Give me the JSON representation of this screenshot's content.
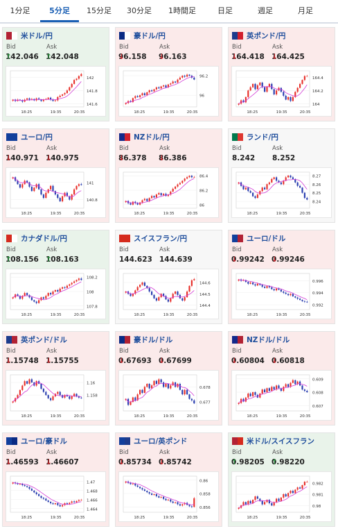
{
  "tabs": [
    {
      "label": "1分足",
      "active": false
    },
    {
      "label": "5分足",
      "active": true
    },
    {
      "label": "15分足",
      "active": false
    },
    {
      "label": "30分足",
      "active": false
    },
    {
      "label": "1時間足",
      "active": false
    },
    {
      "label": "日足",
      "active": false
    },
    {
      "label": "週足",
      "active": false
    },
    {
      "label": "月足",
      "active": false
    }
  ],
  "labels": {
    "bid": "Bid",
    "ask": "Ask"
  },
  "colors": {
    "up_bg": "#e9f3ea",
    "down_bg": "#fbeaea",
    "flat_bg": "#f7f7f7",
    "candle_up": "#e8302b",
    "candle_down": "#2a3eb0",
    "ma_line": "#d23ad6",
    "pair_text": "#1f4e9c"
  },
  "cards": [
    {
      "pair": "米ドル/円",
      "flag": [
        "#b22234",
        "#ffffff"
      ],
      "trend": "up",
      "bid": "142.046",
      "ask": "142.048",
      "dir": "up",
      "chart_data": {
        "type": "candlestick",
        "x_ticks": [
          "18:25",
          "19:35",
          "20:35"
        ],
        "y_ticks": [
          "142",
          "141.8",
          "141.6"
        ],
        "ylim": [
          141.55,
          142.1
        ],
        "closes": [
          141.66,
          141.64,
          141.66,
          141.65,
          141.63,
          141.66,
          141.68,
          141.66,
          141.67,
          141.65,
          141.68,
          141.66,
          141.64,
          141.66,
          141.67,
          141.69,
          141.66,
          141.64,
          141.65,
          141.7,
          141.72,
          141.74,
          141.76,
          141.8,
          141.85,
          141.9,
          141.96,
          141.98,
          142.02,
          142.05
        ]
      }
    },
    {
      "pair": "豪ドル/円",
      "flag": [
        "#0a2a84",
        "#ffffff"
      ],
      "trend": "down",
      "bid": "96.158",
      "ask": "96.163",
      "dir": "down",
      "chart_data": {
        "type": "candlestick",
        "x_ticks": [
          "18:25",
          "19:35",
          "20:35"
        ],
        "y_ticks": [
          "96.2",
          "96"
        ],
        "ylim": [
          95.88,
          96.25
        ],
        "closes": [
          95.92,
          95.94,
          95.93,
          95.97,
          95.99,
          95.98,
          96.0,
          96.02,
          96.0,
          96.03,
          96.05,
          96.04,
          96.06,
          96.08,
          96.07,
          96.09,
          96.1,
          96.08,
          96.11,
          96.12,
          96.14,
          96.13,
          96.16,
          96.18,
          96.2,
          96.19,
          96.21,
          96.2,
          96.18,
          96.16
        ]
      }
    },
    {
      "pair": "英ポンド/円",
      "flag": [
        "#1d3b8c",
        "#d21f2c"
      ],
      "trend": "down",
      "bid": "164.418",
      "ask": "164.425",
      "dir": "down",
      "chart_data": {
        "type": "candlestick",
        "x_ticks": [
          "18:25",
          "19:35",
          "20:35"
        ],
        "y_ticks": [
          "164.4",
          "164.2",
          "164"
        ],
        "ylim": [
          163.95,
          164.5
        ],
        "closes": [
          164.0,
          164.05,
          164.02,
          164.1,
          164.2,
          164.25,
          164.3,
          164.22,
          164.28,
          164.32,
          164.25,
          164.18,
          164.26,
          164.3,
          164.22,
          164.14,
          164.2,
          164.24,
          164.18,
          164.12,
          164.06,
          164.1,
          164.04,
          164.1,
          164.18,
          164.24,
          164.3,
          164.36,
          164.42,
          164.42
        ]
      }
    },
    {
      "pair": "ユーロ/円",
      "flag": [
        "#123f9c",
        "#123f9c"
      ],
      "trend": "down",
      "bid": "140.971",
      "ask": "140.975",
      "dir": "down",
      "chart_data": {
        "type": "candlestick",
        "x_ticks": [
          "18:25",
          "19:35",
          "20:35"
        ],
        "y_ticks": [
          "141",
          "140.8"
        ],
        "ylim": [
          140.7,
          141.12
        ],
        "closes": [
          141.06,
          141.02,
          140.98,
          140.94,
          140.98,
          141.02,
          141.0,
          140.95,
          140.9,
          140.94,
          140.98,
          140.92,
          140.86,
          140.82,
          140.88,
          140.92,
          140.96,
          140.9,
          140.86,
          140.82,
          140.78,
          140.84,
          140.88,
          140.84,
          140.8,
          140.86,
          140.92,
          140.96,
          140.98,
          140.97
        ]
      }
    },
    {
      "pair": "NZドル/円",
      "flag": [
        "#14298b",
        "#d21f2c"
      ],
      "trend": "down",
      "bid": "86.378",
      "ask": "86.386",
      "dir": "down",
      "chart_data": {
        "type": "candlestick",
        "x_ticks": [
          "18:25",
          "19:35",
          "20:35"
        ],
        "y_ticks": [
          "86.4",
          "86.2",
          "86"
        ],
        "ylim": [
          85.95,
          86.45
        ],
        "closes": [
          86.05,
          86.02,
          86.0,
          86.04,
          86.02,
          86.0,
          86.03,
          86.06,
          86.08,
          86.05,
          86.09,
          86.12,
          86.1,
          86.14,
          86.16,
          86.13,
          86.15,
          86.12,
          86.14,
          86.18,
          86.22,
          86.25,
          86.28,
          86.3,
          86.33,
          86.36,
          86.38,
          86.4,
          86.38,
          86.38
        ]
      }
    },
    {
      "pair": "ランド/円",
      "flag": [
        "#007a4d",
        "#de3831"
      ],
      "trend": "flat",
      "bid": "8.242",
      "ask": "8.252",
      "dir": "none",
      "chart_data": {
        "type": "candlestick",
        "x_ticks": [
          "18:25",
          "19:35",
          "20:35"
        ],
        "y_ticks": [
          "8.27",
          "8.26",
          "8.25",
          "8.24"
        ],
        "ylim": [
          8.232,
          8.274
        ],
        "closes": [
          8.262,
          8.258,
          8.254,
          8.256,
          8.252,
          8.25,
          8.246,
          8.244,
          8.248,
          8.252,
          8.256,
          8.254,
          8.26,
          8.262,
          8.266,
          8.268,
          8.264,
          8.262,
          8.26,
          8.264,
          8.268,
          8.27,
          8.268,
          8.266,
          8.262,
          8.258,
          8.256,
          8.25,
          8.244,
          8.242
        ]
      }
    },
    {
      "pair": "カナダドル/円",
      "flag": [
        "#d52b1e",
        "#ffffff"
      ],
      "trend": "up",
      "bid": "108.156",
      "ask": "108.163",
      "dir": "up",
      "chart_data": {
        "type": "candlestick",
        "x_ticks": [
          "18:25",
          "19:35",
          "20:35"
        ],
        "y_ticks": [
          "108.2",
          "108",
          "107.8"
        ],
        "ylim": [
          107.75,
          108.25
        ],
        "closes": [
          107.92,
          107.96,
          107.94,
          107.9,
          107.94,
          107.98,
          107.95,
          107.92,
          107.88,
          107.86,
          107.84,
          107.88,
          107.92,
          107.9,
          107.94,
          107.98,
          107.96,
          108.0,
          108.02,
          108.0,
          108.04,
          108.06,
          108.05,
          108.08,
          108.1,
          108.12,
          108.14,
          108.16,
          108.18,
          108.16
        ]
      }
    },
    {
      "pair": "スイスフラン/円",
      "flag": [
        "#d52b1e",
        "#d52b1e"
      ],
      "trend": "flat",
      "bid": "144.623",
      "ask": "144.639",
      "dir": "none",
      "chart_data": {
        "type": "candlestick",
        "x_ticks": [
          "18:25",
          "19:35",
          "20:35"
        ],
        "y_ticks": [
          "144.6",
          "144.5",
          "144.4"
        ],
        "ylim": [
          144.36,
          144.68
        ],
        "closes": [
          144.52,
          144.5,
          144.48,
          144.5,
          144.53,
          144.56,
          144.58,
          144.6,
          144.57,
          144.55,
          144.52,
          144.49,
          144.46,
          144.44,
          144.47,
          144.5,
          144.48,
          144.45,
          144.43,
          144.46,
          144.5,
          144.52,
          144.49,
          144.46,
          144.44,
          144.47,
          144.52,
          144.57,
          144.62,
          144.63
        ]
      }
    },
    {
      "pair": "ユーロ/ドル",
      "flag": [
        "#123f9c",
        "#b22234"
      ],
      "trend": "down",
      "bid": "0.99242",
      "ask": "0.99246",
      "dir": "down",
      "chart_data": {
        "type": "candlestick",
        "x_ticks": [
          "18:25",
          "19:35",
          "20:35"
        ],
        "y_ticks": [
          "0.996",
          "0.994",
          "0.992"
        ],
        "ylim": [
          0.9912,
          0.9972
        ],
        "closes": [
          0.9962,
          0.996,
          0.9961,
          0.9958,
          0.9955,
          0.9957,
          0.9954,
          0.9952,
          0.9955,
          0.9953,
          0.995,
          0.9948,
          0.9951,
          0.9949,
          0.9946,
          0.9944,
          0.9947,
          0.9945,
          0.9942,
          0.994,
          0.9938,
          0.9936,
          0.9938,
          0.9934,
          0.9932,
          0.993,
          0.9928,
          0.9926,
          0.9925,
          0.9924
        ]
      }
    },
    {
      "pair": "英ポンド/ドル",
      "flag": [
        "#1d3b8c",
        "#b22234"
      ],
      "trend": "down",
      "bid": "1.15748",
      "ask": "1.15755",
      "dir": "down",
      "chart_data": {
        "type": "candlestick",
        "x_ticks": [
          "18:25",
          "19:35",
          "20:35"
        ],
        "y_ticks": [
          "1.16",
          "1.158"
        ],
        "ylim": [
          1.1555,
          1.1612
        ],
        "closes": [
          1.157,
          1.1575,
          1.158,
          1.1588,
          1.1595,
          1.1602,
          1.1598,
          1.1605,
          1.16,
          1.1595,
          1.1602,
          1.1598,
          1.159,
          1.1585,
          1.158,
          1.1575,
          1.1572,
          1.1578,
          1.1582,
          1.1585,
          1.158,
          1.1576,
          1.158,
          1.1578,
          1.1574,
          1.1578,
          1.1582,
          1.1578,
          1.1576,
          1.1575
        ]
      }
    },
    {
      "pair": "豪ドル/ドル",
      "flag": [
        "#0a2a84",
        "#b22234"
      ],
      "trend": "down",
      "bid": "0.67693",
      "ask": "0.67699",
      "dir": "down",
      "chart_data": {
        "type": "candlestick",
        "x_ticks": [
          "18:25",
          "19:35",
          "20:35"
        ],
        "y_ticks": [
          "0.678",
          "0.677"
        ],
        "ylim": [
          0.6764,
          0.6788
        ],
        "closes": [
          0.6772,
          0.6768,
          0.677,
          0.6773,
          0.6771,
          0.6775,
          0.6778,
          0.6776,
          0.678,
          0.6782,
          0.6779,
          0.6781,
          0.6784,
          0.6782,
          0.6785,
          0.6783,
          0.678,
          0.6782,
          0.6779,
          0.6781,
          0.6783,
          0.678,
          0.6782,
          0.6778,
          0.6775,
          0.6778,
          0.6775,
          0.6772,
          0.6771,
          0.6769
        ]
      }
    },
    {
      "pair": "NZドル/ドル",
      "flag": [
        "#14298b",
        "#b22234"
      ],
      "trend": "down",
      "bid": "0.60804",
      "ask": "0.60818",
      "dir": "down",
      "chart_data": {
        "type": "candlestick",
        "x_ticks": [
          "18:25",
          "19:35",
          "20:35"
        ],
        "y_ticks": [
          "0.609",
          "0.608",
          "0.607"
        ],
        "ylim": [
          0.6066,
          0.6093
        ],
        "closes": [
          0.6072,
          0.6075,
          0.6073,
          0.6076,
          0.6079,
          0.6077,
          0.608,
          0.6078,
          0.6076,
          0.6079,
          0.6082,
          0.608,
          0.6083,
          0.6081,
          0.6084,
          0.6082,
          0.6085,
          0.6083,
          0.6081,
          0.6084,
          0.6086,
          0.6084,
          0.6087,
          0.6089,
          0.6086,
          0.6088,
          0.6085,
          0.6082,
          0.6081,
          0.608
        ]
      }
    },
    {
      "pair": "ユーロ/豪ドル",
      "flag": [
        "#123f9c",
        "#0a2a84"
      ],
      "trend": "down",
      "bid": "1.46593",
      "ask": "1.46607",
      "dir": "down",
      "chart_data": {
        "type": "candlestick",
        "x_ticks": [
          "18:25",
          "19:35",
          "20:35"
        ],
        "y_ticks": [
          "1.47",
          "1.468",
          "1.466",
          "1.464"
        ],
        "ylim": [
          1.4632,
          1.4712
        ],
        "closes": [
          1.4698,
          1.4696,
          1.4694,
          1.4695,
          1.4692,
          1.469,
          1.4688,
          1.4684,
          1.468,
          1.4676,
          1.4672,
          1.4668,
          1.4664,
          1.4662,
          1.4658,
          1.4655,
          1.4652,
          1.465,
          1.4652,
          1.4648,
          1.4645,
          1.4648,
          1.4652,
          1.465,
          1.4653,
          1.4656,
          1.4654,
          1.4657,
          1.4659,
          1.4659
        ]
      }
    },
    {
      "pair": "ユーロ/英ポンド",
      "flag": [
        "#123f9c",
        "#1d3b8c"
      ],
      "trend": "down",
      "bid": "0.85734",
      "ask": "0.85742",
      "dir": "down",
      "chart_data": {
        "type": "candlestick",
        "x_ticks": [
          "18:25",
          "19:35",
          "20:35"
        ],
        "y_ticks": [
          "0.86",
          "0.858",
          "0.856"
        ],
        "ylim": [
          0.8552,
          0.8606
        ],
        "closes": [
          0.8598,
          0.8596,
          0.8594,
          0.8595,
          0.8592,
          0.859,
          0.8588,
          0.8586,
          0.8584,
          0.8582,
          0.858,
          0.8578,
          0.8579,
          0.8576,
          0.8574,
          0.8575,
          0.8572,
          0.857,
          0.8571,
          0.8568,
          0.8566,
          0.8567,
          0.8564,
          0.8562,
          0.8564,
          0.8566,
          0.8563,
          0.8561,
          0.856,
          0.8573
        ]
      }
    },
    {
      "pair": "米ドル/スイスフラン",
      "flag": [
        "#b22234",
        "#d52b1e"
      ],
      "trend": "up",
      "bid": "0.98205",
      "ask": "0.98220",
      "dir": "up",
      "chart_data": {
        "type": "candlestick",
        "x_ticks": [
          "18:25",
          "19:35",
          "20:35"
        ],
        "y_ticks": [
          "0.982",
          "0.981",
          "0.98"
        ],
        "ylim": [
          0.9794,
          0.9826
        ],
        "closes": [
          0.9798,
          0.98,
          0.9803,
          0.9801,
          0.9804,
          0.9802,
          0.9805,
          0.9808,
          0.9806,
          0.9804,
          0.9801,
          0.9803,
          0.9805,
          0.9802,
          0.98,
          0.9803,
          0.9806,
          0.9804,
          0.9807,
          0.981,
          0.9808,
          0.9811,
          0.9813,
          0.9811,
          0.9814,
          0.9816,
          0.9815,
          0.9818,
          0.9821,
          0.9821
        ]
      }
    }
  ]
}
